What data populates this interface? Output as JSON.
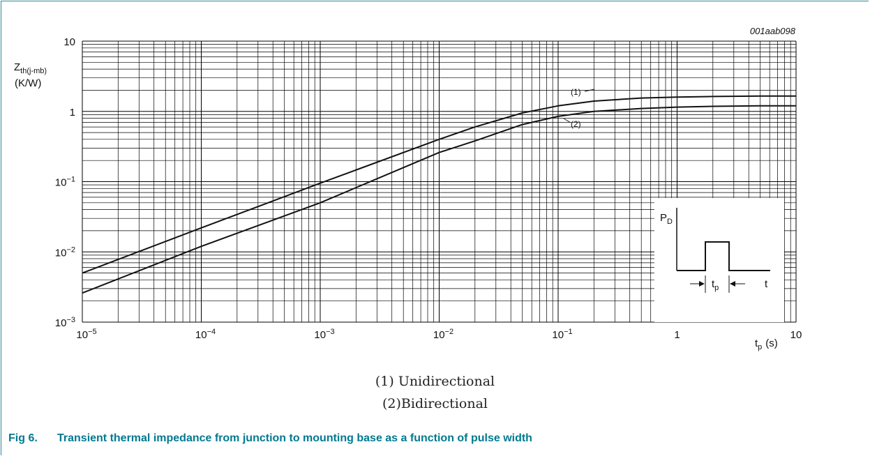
{
  "figure_code": "001aab098",
  "caption": {
    "number": "Fig 6.",
    "text": "Transient thermal impedance from junction to mounting base as a function of pulse width"
  },
  "legend_lines": [
    "(1) Unidirectional",
    "(2)Bidirectional"
  ],
  "inset": {
    "pd_label": "P",
    "pd_sub": "D",
    "tp_label": "t",
    "tp_sub": "p",
    "t_label": "t"
  },
  "chart_data": {
    "type": "line",
    "x_scale": "log",
    "y_scale": "log",
    "xlim": [
      1e-05,
      10
    ],
    "ylim": [
      0.001,
      10
    ],
    "grid": true,
    "ylabel_main": "Z",
    "ylabel_sub": "th(j-mb)",
    "ylabel_unit": "(K/W)",
    "xlabel_main": "t",
    "xlabel_sub": "p",
    "xlabel_unit": "(s)",
    "x_ticks": [
      {
        "base": "10",
        "exp": "−5",
        "value": 1e-05
      },
      {
        "base": "10",
        "exp": "−4",
        "value": 0.0001
      },
      {
        "base": "10",
        "exp": "−3",
        "value": 0.001
      },
      {
        "base": "10",
        "exp": "−2",
        "value": 0.01
      },
      {
        "base": "10",
        "exp": "−1",
        "value": 0.1
      },
      {
        "base": "1",
        "exp": "",
        "value": 1
      },
      {
        "base": "10",
        "exp": "",
        "value": 10
      }
    ],
    "y_ticks": [
      {
        "base": "10",
        "exp": "−3",
        "value": 0.001
      },
      {
        "base": "10",
        "exp": "−2",
        "value": 0.01
      },
      {
        "base": "10",
        "exp": "−1",
        "value": 0.1
      },
      {
        "base": "1",
        "exp": "",
        "value": 1
      },
      {
        "base": "10",
        "exp": "",
        "value": 10
      }
    ],
    "series": [
      {
        "name": "(1)",
        "x": [
          1e-05,
          0.0001,
          0.001,
          0.01,
          0.02,
          0.05,
          0.1,
          0.2,
          0.5,
          1,
          2,
          5,
          10
        ],
        "y": [
          0.005,
          0.022,
          0.095,
          0.4,
          0.6,
          0.95,
          1.2,
          1.4,
          1.55,
          1.6,
          1.63,
          1.65,
          1.65
        ]
      },
      {
        "name": "(2)",
        "x": [
          1e-05,
          0.0001,
          0.001,
          0.01,
          0.02,
          0.05,
          0.1,
          0.2,
          0.5,
          1,
          2,
          5,
          10
        ],
        "y": [
          0.0026,
          0.012,
          0.05,
          0.26,
          0.38,
          0.65,
          0.85,
          1.0,
          1.1,
          1.15,
          1.18,
          1.2,
          1.2
        ]
      }
    ]
  }
}
